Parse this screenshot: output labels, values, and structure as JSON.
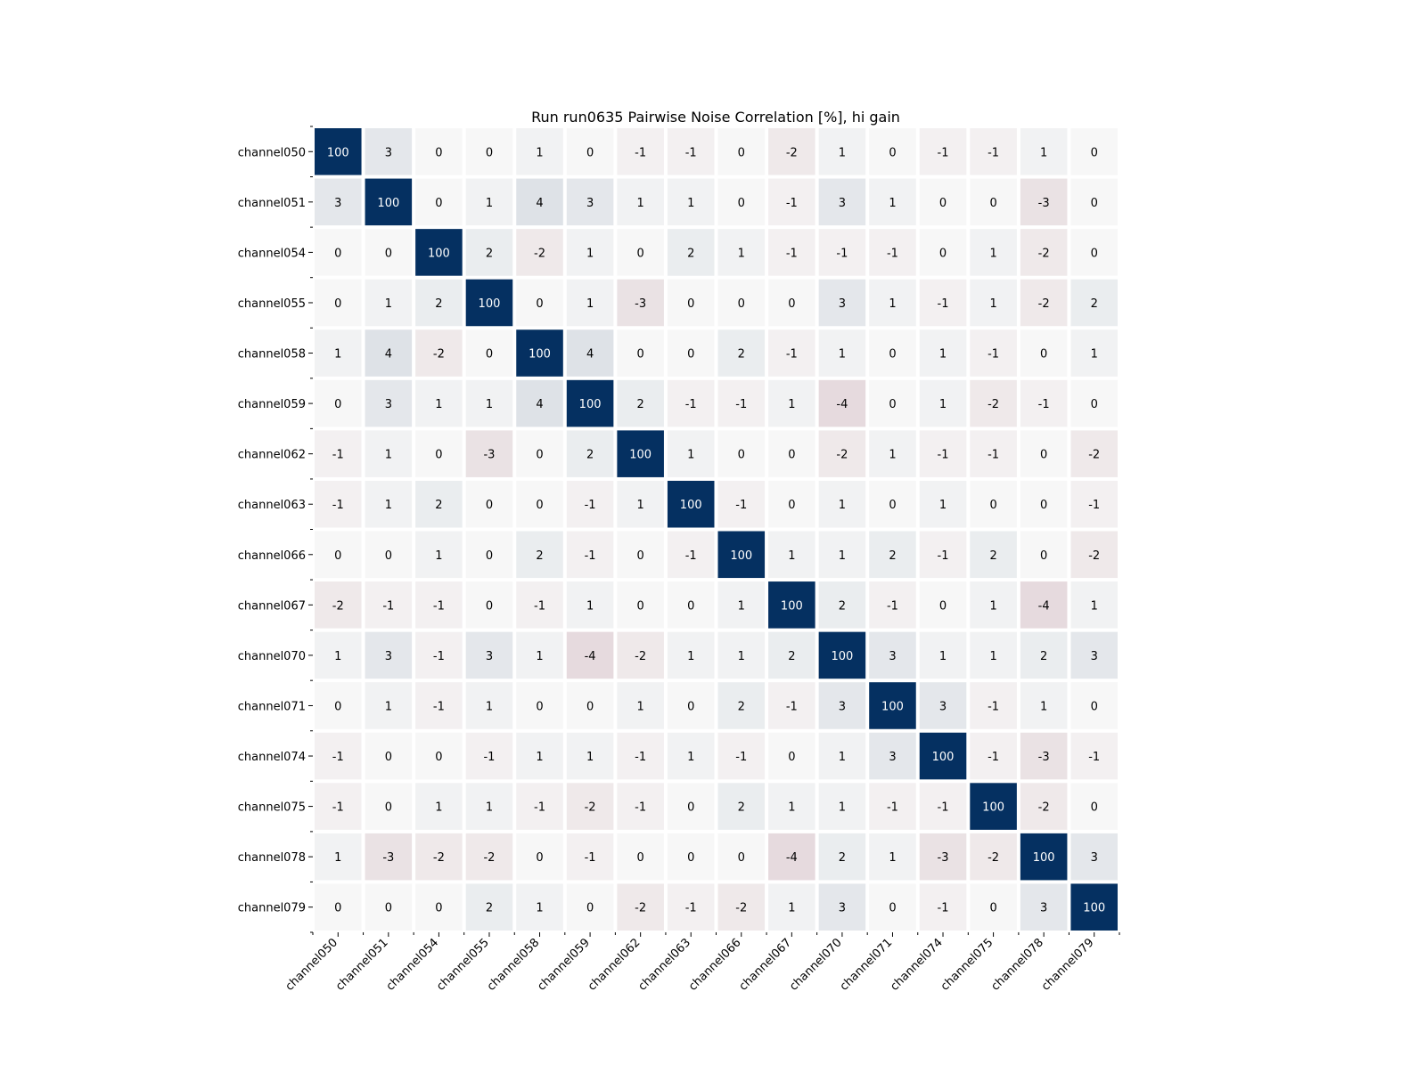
{
  "chart_data": {
    "type": "heatmap",
    "title": "Run run0635 Pairwise Noise Correlation [%], hi gain",
    "xlabel": "",
    "ylabel": "",
    "labels": [
      "channel050",
      "channel051",
      "channel054",
      "channel055",
      "channel058",
      "channel059",
      "channel062",
      "channel063",
      "channel066",
      "channel067",
      "channel070",
      "channel071",
      "channel074",
      "channel075",
      "channel078",
      "channel079"
    ],
    "values": [
      [
        100,
        3,
        0,
        0,
        1,
        0,
        -1,
        -1,
        0,
        -2,
        1,
        0,
        -1,
        -1,
        1,
        0
      ],
      [
        3,
        100,
        0,
        1,
        4,
        3,
        1,
        1,
        0,
        -1,
        3,
        1,
        0,
        0,
        -3,
        0
      ],
      [
        0,
        0,
        100,
        2,
        -2,
        1,
        0,
        2,
        1,
        -1,
        -1,
        -1,
        0,
        1,
        -2,
        0
      ],
      [
        0,
        1,
        2,
        100,
        0,
        1,
        -3,
        0,
        0,
        0,
        3,
        1,
        -1,
        1,
        -2,
        2
      ],
      [
        1,
        4,
        -2,
        0,
        100,
        4,
        0,
        0,
        2,
        -1,
        1,
        0,
        1,
        -1,
        0,
        1
      ],
      [
        0,
        3,
        1,
        1,
        4,
        100,
        2,
        -1,
        -1,
        1,
        -4,
        0,
        1,
        -2,
        -1,
        0
      ],
      [
        -1,
        1,
        0,
        -3,
        0,
        2,
        100,
        1,
        0,
        0,
        -2,
        1,
        -1,
        -1,
        0,
        -2
      ],
      [
        -1,
        1,
        2,
        0,
        0,
        -1,
        1,
        100,
        -1,
        0,
        1,
        0,
        1,
        0,
        0,
        -1
      ],
      [
        0,
        0,
        1,
        0,
        2,
        -1,
        0,
        -1,
        100,
        1,
        1,
        2,
        -1,
        2,
        0,
        -2
      ],
      [
        -2,
        -1,
        -1,
        0,
        -1,
        1,
        0,
        0,
        1,
        100,
        2,
        -1,
        0,
        1,
        -4,
        1
      ],
      [
        1,
        3,
        -1,
        3,
        1,
        -4,
        -2,
        1,
        1,
        2,
        100,
        3,
        1,
        1,
        2,
        3
      ],
      [
        0,
        1,
        -1,
        1,
        0,
        0,
        1,
        0,
        2,
        -1,
        3,
        100,
        3,
        -1,
        1,
        0
      ],
      [
        -1,
        0,
        0,
        -1,
        1,
        1,
        -1,
        1,
        -1,
        0,
        1,
        3,
        100,
        -1,
        -3,
        -1
      ],
      [
        -1,
        0,
        1,
        1,
        -1,
        -2,
        -1,
        0,
        2,
        1,
        1,
        -1,
        -1,
        100,
        -2,
        0
      ],
      [
        1,
        -3,
        -2,
        -2,
        0,
        -1,
        0,
        0,
        0,
        -4,
        2,
        1,
        -3,
        -2,
        100,
        3
      ],
      [
        0,
        0,
        0,
        2,
        1,
        0,
        -2,
        -1,
        -2,
        1,
        3,
        0,
        -1,
        0,
        3,
        100
      ]
    ],
    "colormap": "diverging red-white-blue",
    "color_range": [
      -100,
      100
    ],
    "colors": {
      "max": "#053061",
      "neutral": "#f7f7f7",
      "min": "#67001f",
      "gap": "#ffffff"
    },
    "grid": false,
    "legend": "none"
  }
}
